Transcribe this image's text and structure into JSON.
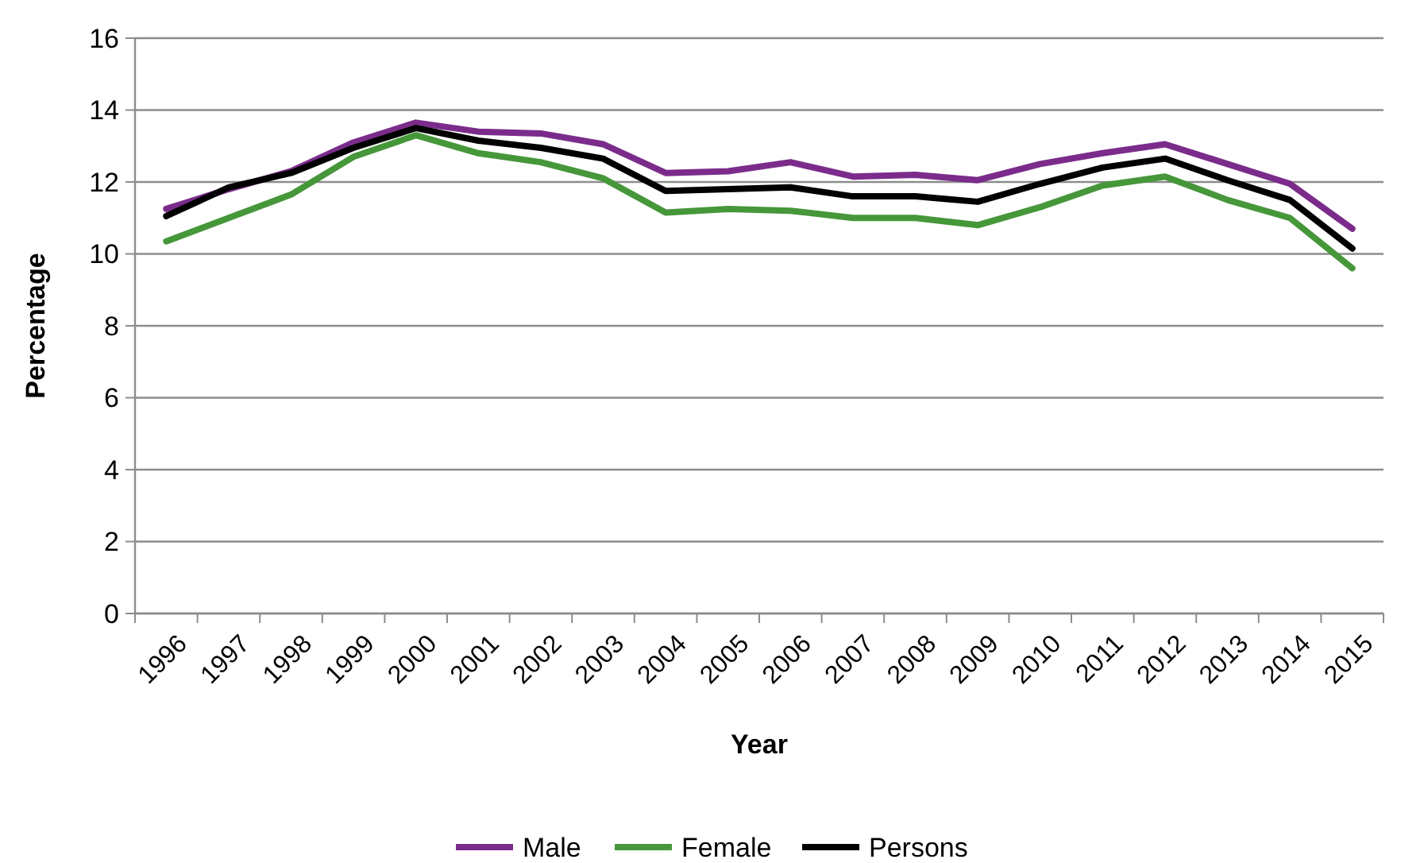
{
  "chart_data": {
    "type": "line",
    "xlabel": "Year",
    "ylabel": "Percentage",
    "categories": [
      "1996",
      "1997",
      "1998",
      "1999",
      "2000",
      "2001",
      "2002",
      "2003",
      "2004",
      "2005",
      "2006",
      "2007",
      "2008",
      "2009",
      "2010",
      "2011",
      "2012",
      "2013",
      "2014",
      "2015"
    ],
    "series": [
      {
        "name": "Male",
        "color": "#7b2c8b",
        "values": [
          11.25,
          11.8,
          12.3,
          13.1,
          13.65,
          13.4,
          13.35,
          13.05,
          12.25,
          12.3,
          12.55,
          12.15,
          12.2,
          12.05,
          12.5,
          12.8,
          13.05,
          12.5,
          11.95,
          10.7
        ]
      },
      {
        "name": "Female",
        "color": "#46973a",
        "values": [
          10.35,
          11.0,
          11.65,
          12.7,
          13.3,
          12.8,
          12.55,
          12.1,
          11.15,
          11.25,
          11.2,
          11.0,
          11.0,
          10.8,
          11.3,
          11.9,
          12.15,
          11.5,
          11.0,
          9.6
        ]
      },
      {
        "name": "Persons",
        "color": "#000000",
        "values": [
          11.05,
          11.85,
          12.25,
          12.95,
          13.5,
          13.15,
          12.95,
          12.65,
          11.75,
          11.8,
          11.85,
          11.6,
          11.6,
          11.45,
          11.95,
          12.4,
          12.65,
          12.05,
          11.5,
          10.15
        ]
      }
    ],
    "ylim": [
      0,
      16
    ],
    "yticks": [
      0,
      2,
      4,
      6,
      8,
      10,
      12,
      14,
      16
    ],
    "grid": "y",
    "legend": "bottom",
    "marker": "none",
    "line_style": "solid"
  }
}
